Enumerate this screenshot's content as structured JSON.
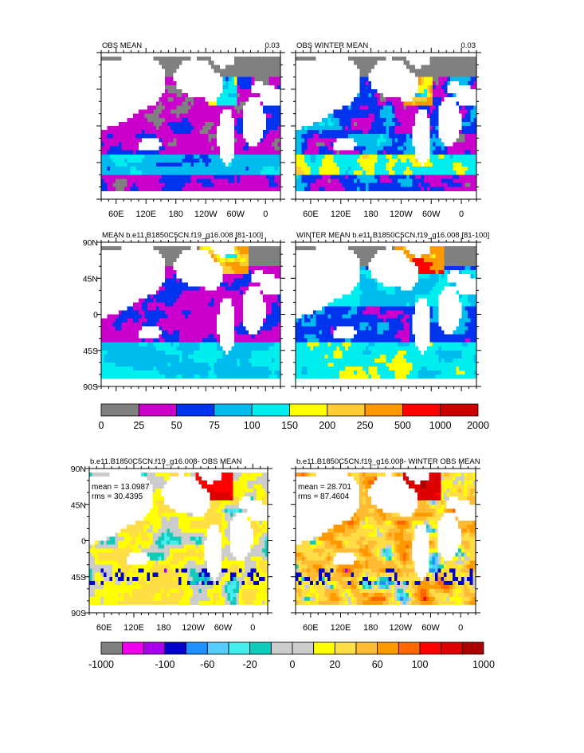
{
  "chart_data": {
    "type": "heatmap",
    "panels": [
      {
        "key": "p1",
        "title": "OBS MEAN",
        "right_label": "0.03",
        "scale": "abs",
        "mean": null,
        "rms": null
      },
      {
        "key": "p2",
        "title": "OBS WINTER MEAN",
        "right_label": "0.03",
        "scale": "abs",
        "mean": null,
        "rms": null
      },
      {
        "key": "p3",
        "title": "MEAN b.e11.B1850C5CN.f19_g16.008 [81-100]",
        "right_label": "",
        "scale": "abs",
        "mean": null,
        "rms": null
      },
      {
        "key": "p4",
        "title": "WINTER MEAN b.e11.B1850C5CN.f19_g16.008 [81-100]",
        "right_label": "",
        "scale": "abs",
        "mean": null,
        "rms": null
      },
      {
        "key": "p5",
        "title": "b.e11.B1850C5CN.f19_g16.008- OBS MEAN",
        "right_label": "",
        "scale": "diff",
        "mean": "mean = 13.0987",
        "rms": "rms = 30.4395"
      },
      {
        "key": "p6",
        "title": "b.e11.B1850C5CN.f19_g16.008- WINTER OBS MEAN",
        "right_label": "",
        "scale": "diff",
        "mean": "mean = 28.701",
        "rms": "rms = 87.4604"
      }
    ],
    "x_tick_labels": [
      "60E",
      "120E",
      "180",
      "120W",
      "60W",
      "0"
    ],
    "y_tick_labels": [
      "90N",
      "45N",
      "0",
      "45S",
      "90S"
    ],
    "colorbar_abs": {
      "colors": [
        "#808080",
        "#cc00cc",
        "#0033ee",
        "#00bbee",
        "#00eeee",
        "#ffff00",
        "#ffcc33",
        "#ff9900",
        "#ff0000",
        "#cc0000"
      ],
      "labels": [
        "0",
        "25",
        "50",
        "75",
        "100",
        "150",
        "200",
        "250",
        "500",
        "1000",
        "2000"
      ]
    },
    "colorbar_diff": {
      "colors": [
        "#808080",
        "#ee00ee",
        "#aa00ee",
        "#0000cc",
        "#1e90ff",
        "#55ccff",
        "#44eeee",
        "#11ccbb",
        "#cccccc",
        "#cccccc",
        "#ffff00",
        "#ffdd44",
        "#ffbb33",
        "#ff9900",
        "#ff6600",
        "#ff0000",
        "#dd0000",
        "#aa0000"
      ],
      "labels": [
        "-1000",
        "-100",
        "-60",
        "-20",
        "0",
        "20",
        "60",
        "100",
        "1000"
      ]
    }
  }
}
